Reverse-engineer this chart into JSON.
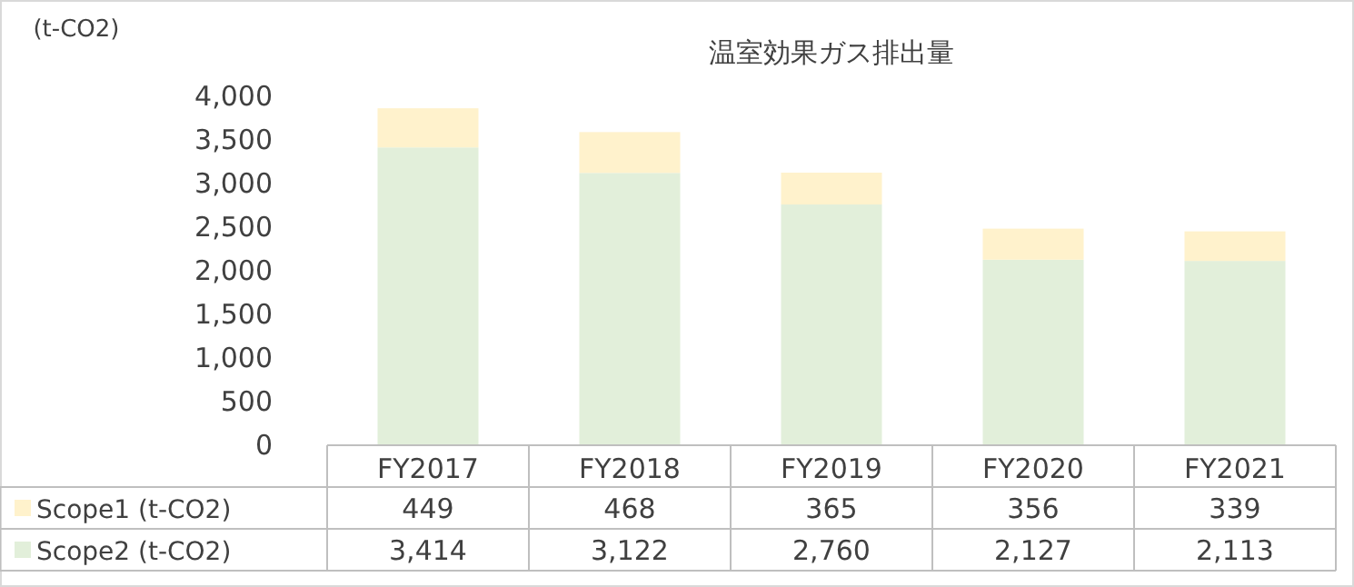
{
  "chart_data": {
    "type": "bar",
    "stacked": true,
    "title": "温室効果ガス排出量",
    "ylabel": "(t-CO2)",
    "categories": [
      "FY2017",
      "FY2018",
      "FY2019",
      "FY2020",
      "FY2021"
    ],
    "series": [
      {
        "name": "Scope2 (t-CO2)",
        "color": "#e2efda",
        "values": [
          3414,
          3122,
          2760,
          2127,
          2113
        ],
        "value_labels": [
          "3,414",
          "3,122",
          "2,760",
          "2,127",
          "2,113"
        ]
      },
      {
        "name": "Scope1 (t-CO2)",
        "color": "#fff2cc",
        "values": [
          449,
          468,
          365,
          356,
          339
        ],
        "value_labels": [
          "449",
          "468",
          "365",
          "356",
          "339"
        ]
      }
    ],
    "ylim": [
      0,
      4000
    ],
    "yticks": [
      0,
      500,
      {
        "value": 1000,
        "label": "1,000"
      },
      {
        "value": 1500,
        "label": "1,500"
      },
      {
        "value": 2000,
        "label": "2,000"
      },
      {
        "value": 2500,
        "label": "2,500"
      },
      {
        "value": 3000,
        "label": "3,000"
      },
      {
        "value": 3500,
        "label": "3,500"
      },
      {
        "value": 4000,
        "label": "4,000"
      }
    ],
    "legend": "bottom",
    "grid": false
  }
}
